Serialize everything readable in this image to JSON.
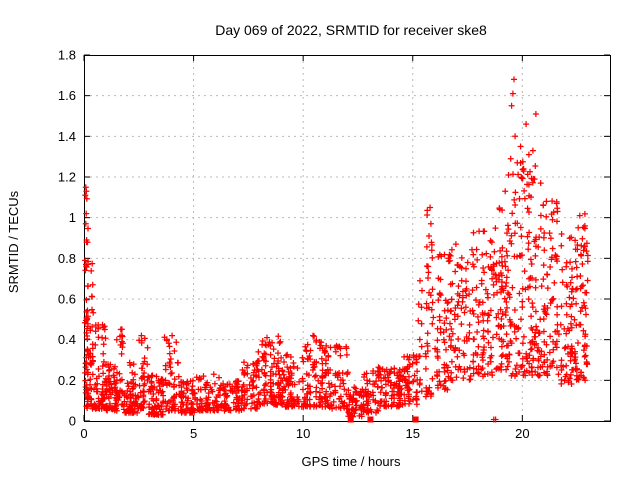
{
  "chart_data": {
    "type": "scatter",
    "title": "Day 069 of 2022, SRMTID for receiver ske8",
    "xlabel": "GPS time / hours",
    "ylabel": "SRMTID / TECUs",
    "xlim": [
      0,
      24
    ],
    "ylim": [
      0,
      1.8
    ],
    "xticks": [
      0,
      5,
      10,
      15,
      20
    ],
    "yticks": [
      0,
      0.2,
      0.4,
      0.6,
      0.8,
      1,
      1.2,
      1.4,
      1.6,
      1.8
    ],
    "grid": true,
    "marker": "plus-cross",
    "colors": {
      "marker": "#ff0000",
      "grid": "#b9b9b9",
      "frame": "#000000",
      "text": "#000000",
      "background": "#ffffff"
    },
    "seed": 1069,
    "cluster_fields": "x_start,x_end,y_min,y_max,count,skew_toward_min",
    "point_clusters": [
      [
        0.03,
        0.2,
        0.05,
        1.16,
        34,
        0.6
      ],
      [
        0.06,
        0.45,
        0.28,
        0.8,
        30,
        1.2
      ],
      [
        0.15,
        1.05,
        0.06,
        0.48,
        95,
        1.0
      ],
      [
        1.0,
        1.5,
        0.05,
        0.28,
        55,
        0.8
      ],
      [
        1.45,
        1.8,
        0.08,
        0.46,
        30,
        0.8
      ],
      [
        1.8,
        2.45,
        0.04,
        0.3,
        60,
        1.0
      ],
      [
        2.45,
        2.95,
        0.06,
        0.43,
        40,
        0.9
      ],
      [
        2.95,
        3.65,
        0.03,
        0.24,
        65,
        0.8
      ],
      [
        3.65,
        4.35,
        0.05,
        0.43,
        55,
        1.1
      ],
      [
        4.35,
        5.1,
        0.04,
        0.2,
        60,
        0.6
      ],
      [
        5.1,
        6.2,
        0.05,
        0.23,
        75,
        0.7
      ],
      [
        6.2,
        7.2,
        0.05,
        0.2,
        70,
        0.6
      ],
      [
        7.2,
        7.95,
        0.06,
        0.3,
        60,
        0.8
      ],
      [
        7.95,
        9.1,
        0.08,
        0.42,
        110,
        0.7
      ],
      [
        9.1,
        10.1,
        0.07,
        0.33,
        75,
        0.7
      ],
      [
        10.1,
        11.0,
        0.07,
        0.42,
        80,
        0.8
      ],
      [
        11.0,
        12.05,
        0.06,
        0.37,
        80,
        0.8
      ],
      [
        12.05,
        12.7,
        0.02,
        0.17,
        45,
        0.6
      ],
      [
        12.7,
        13.45,
        0.04,
        0.27,
        55,
        0.6
      ],
      [
        13.45,
        14.6,
        0.07,
        0.26,
        90,
        0.5
      ],
      [
        14.6,
        15.25,
        0.08,
        0.33,
        55,
        0.5
      ],
      [
        15.25,
        15.95,
        0.12,
        0.72,
        45,
        0.8
      ],
      [
        15.65,
        15.9,
        0.72,
        1.06,
        8,
        0
      ],
      [
        15.95,
        16.7,
        0.15,
        0.82,
        60,
        0.6
      ],
      [
        16.7,
        17.7,
        0.2,
        0.88,
        80,
        0.4
      ],
      [
        17.7,
        18.65,
        0.22,
        0.95,
        85,
        0.4
      ],
      [
        18.65,
        19.45,
        0.25,
        1.05,
        85,
        0.35
      ],
      [
        19.45,
        20.65,
        0.22,
        1.28,
        130,
        0.35
      ],
      [
        20.65,
        21.7,
        0.22,
        1.12,
        95,
        0.4
      ],
      [
        21.7,
        22.45,
        0.18,
        0.92,
        75,
        0.45
      ],
      [
        22.45,
        23.05,
        0.2,
        1.02,
        65,
        0.45
      ]
    ],
    "outlier_points": [
      [
        19.62,
        1.68
      ],
      [
        19.57,
        1.61
      ],
      [
        19.51,
        1.55
      ],
      [
        20.62,
        1.51
      ],
      [
        20.17,
        1.46
      ],
      [
        19.67,
        1.4
      ],
      [
        19.92,
        1.35
      ],
      [
        20.48,
        1.33
      ],
      [
        20.3,
        1.31
      ],
      [
        19.47,
        1.29
      ],
      [
        19.77,
        1.27
      ],
      [
        20.06,
        1.24
      ],
      [
        19.37,
        1.21
      ],
      [
        20.84,
        1.17
      ],
      [
        19.22,
        1.13
      ],
      [
        21.1,
        1.08
      ],
      [
        18.97,
        1.04
      ],
      [
        15.79,
        1.05
      ],
      [
        15.83,
        0.97
      ],
      [
        15.74,
        0.91
      ],
      [
        15.87,
        0.84
      ],
      [
        15.7,
        0.76
      ],
      [
        0.08,
        1.15
      ],
      [
        0.11,
        1.13
      ],
      [
        0.06,
        1.11
      ],
      [
        0.1,
        1.02
      ],
      [
        0.08,
        0.97
      ],
      [
        0.12,
        0.88
      ],
      [
        0.05,
        0.79
      ],
      [
        0.09,
        0.77
      ],
      [
        0.88,
        0.46
      ],
      [
        0.95,
        0.45
      ],
      [
        1.68,
        0.45
      ],
      [
        2.62,
        0.42
      ],
      [
        4.02,
        0.42
      ],
      [
        8.35,
        0.41
      ],
      [
        10.45,
        0.42
      ],
      [
        11.52,
        0.37
      ],
      [
        22.62,
        1.01
      ],
      [
        22.55,
        0.95
      ]
    ],
    "zero_square_points_x": [
      12.17,
      13.07,
      15.13
    ],
    "zero_cross_points_x": [
      18.7,
      18.78
    ]
  }
}
